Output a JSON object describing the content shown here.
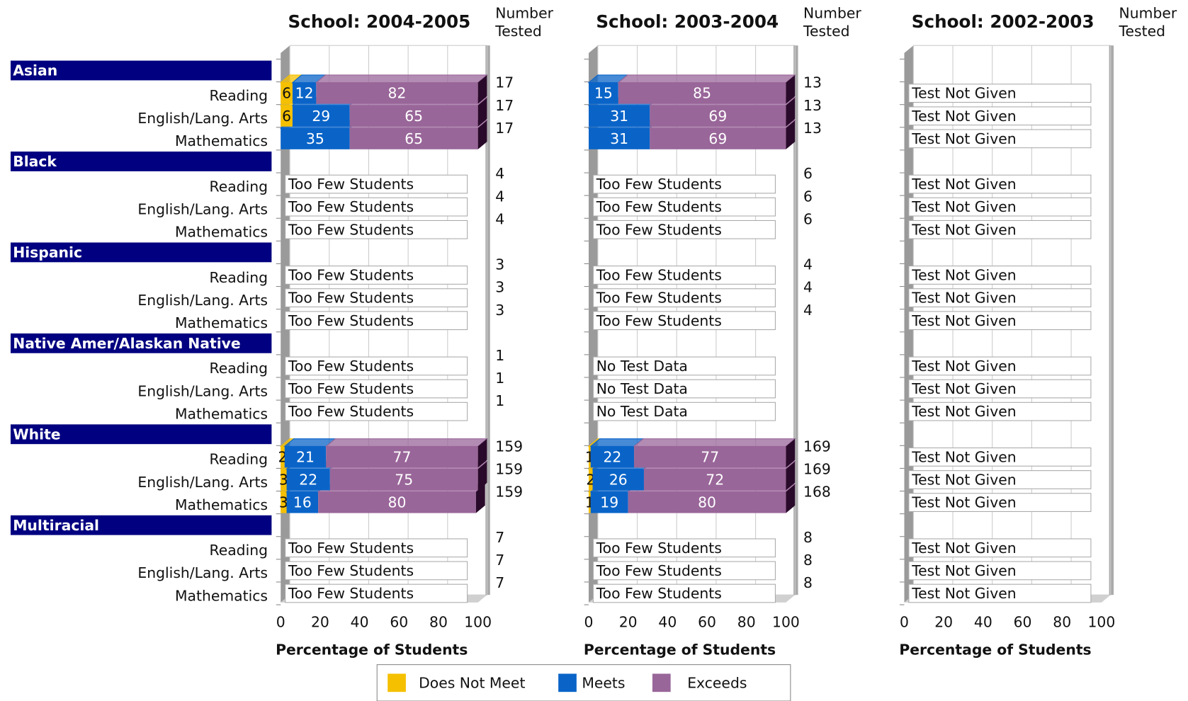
{
  "groups": [
    "Asian",
    "Black",
    "Hispanic",
    "Native Amer/Alaskan Native",
    "White",
    "Multiracial"
  ],
  "row_labels": [
    "Reading",
    "English/Lang. Arts",
    "Mathematics",
    "Reading",
    "English/Lang. Arts",
    "Mathematics",
    "Reading",
    "English/Lang. Arts",
    "Mathematics",
    "Reading",
    "English/Lang. Arts",
    "Mathematics",
    "Reading",
    "English/Lang. Arts",
    "Mathematics",
    "Reading",
    "English/Lang. Arts",
    "Mathematics"
  ],
  "chart_data": [
    {
      "type": "bar",
      "orientation": "horizontal",
      "stacked": true,
      "title": "School: 2004-2005",
      "number_header": [
        "Number",
        "Tested"
      ],
      "x_label": "Percentage of Students",
      "xlim": [
        0,
        100
      ],
      "xticks": [
        0,
        20,
        40,
        60,
        80,
        100
      ],
      "series": [
        {
          "name": "Does Not Meet",
          "color": "#f5c000",
          "values": [
            6,
            6,
            null,
            null,
            null,
            null,
            null,
            null,
            null,
            null,
            null,
            null,
            2,
            3,
            3,
            null,
            null,
            null
          ]
        },
        {
          "name": "Meets",
          "color": "#0a64c8",
          "values": [
            12,
            29,
            35,
            null,
            null,
            null,
            null,
            null,
            null,
            null,
            null,
            null,
            21,
            22,
            16,
            null,
            null,
            null
          ]
        },
        {
          "name": "Exceeds",
          "color": "#996699",
          "values": [
            82,
            65,
            65,
            null,
            null,
            null,
            null,
            null,
            null,
            null,
            null,
            null,
            77,
            75,
            80,
            null,
            null,
            null
          ]
        }
      ],
      "status": [
        null,
        null,
        null,
        "Too Few Students",
        "Too Few Students",
        "Too Few Students",
        "Too Few Students",
        "Too Few Students",
        "Too Few Students",
        "Too Few Students",
        "Too Few Students",
        "Too Few Students",
        null,
        null,
        null,
        "Too Few Students",
        "Too Few Students",
        "Too Few Students"
      ],
      "number_tested": [
        17,
        17,
        17,
        4,
        4,
        4,
        3,
        3,
        3,
        1,
        1,
        1,
        159,
        159,
        159,
        7,
        7,
        7
      ]
    },
    {
      "type": "bar",
      "orientation": "horizontal",
      "stacked": true,
      "title": "School: 2003-2004",
      "number_header": [
        "Number",
        "Tested"
      ],
      "x_label": "Percentage of Students",
      "xlim": [
        0,
        100
      ],
      "xticks": [
        0,
        20,
        40,
        60,
        80,
        100
      ],
      "series": [
        {
          "name": "Does Not Meet",
          "color": "#f5c000",
          "values": [
            null,
            null,
            null,
            null,
            null,
            null,
            null,
            null,
            null,
            null,
            null,
            null,
            1,
            2,
            1,
            null,
            null,
            null
          ]
        },
        {
          "name": "Meets",
          "color": "#0a64c8",
          "values": [
            15,
            31,
            31,
            null,
            null,
            null,
            null,
            null,
            null,
            null,
            null,
            null,
            22,
            26,
            19,
            null,
            null,
            null
          ]
        },
        {
          "name": "Exceeds",
          "color": "#996699",
          "values": [
            85,
            69,
            69,
            null,
            null,
            null,
            null,
            null,
            null,
            null,
            null,
            null,
            77,
            72,
            80,
            null,
            null,
            null
          ]
        }
      ],
      "status": [
        null,
        null,
        null,
        "Too Few Students",
        "Too Few Students",
        "Too Few Students",
        "Too Few Students",
        "Too Few Students",
        "Too Few Students",
        "No Test Data",
        "No Test Data",
        "No Test Data",
        null,
        null,
        null,
        "Too Few Students",
        "Too Few Students",
        "Too Few Students"
      ],
      "number_tested": [
        13,
        13,
        13,
        6,
        6,
        6,
        4,
        4,
        4,
        null,
        null,
        null,
        169,
        169,
        168,
        8,
        8,
        8
      ]
    },
    {
      "type": "bar",
      "orientation": "horizontal",
      "stacked": true,
      "title": "School: 2002-2003",
      "number_header": [
        "Number",
        "Tested"
      ],
      "x_label": "Percentage of Students",
      "xlim": [
        0,
        100
      ],
      "xticks": [
        0,
        20,
        40,
        60,
        80,
        100
      ],
      "status": [
        "Test Not Given",
        "Test Not Given",
        "Test Not Given",
        "Test Not Given",
        "Test Not Given",
        "Test Not Given",
        "Test Not Given",
        "Test Not Given",
        "Test Not Given",
        "Test Not Given",
        "Test Not Given",
        "Test Not Given",
        "Test Not Given",
        "Test Not Given",
        "Test Not Given",
        "Test Not Given",
        "Test Not Given",
        "Test Not Given"
      ]
    }
  ]
}
